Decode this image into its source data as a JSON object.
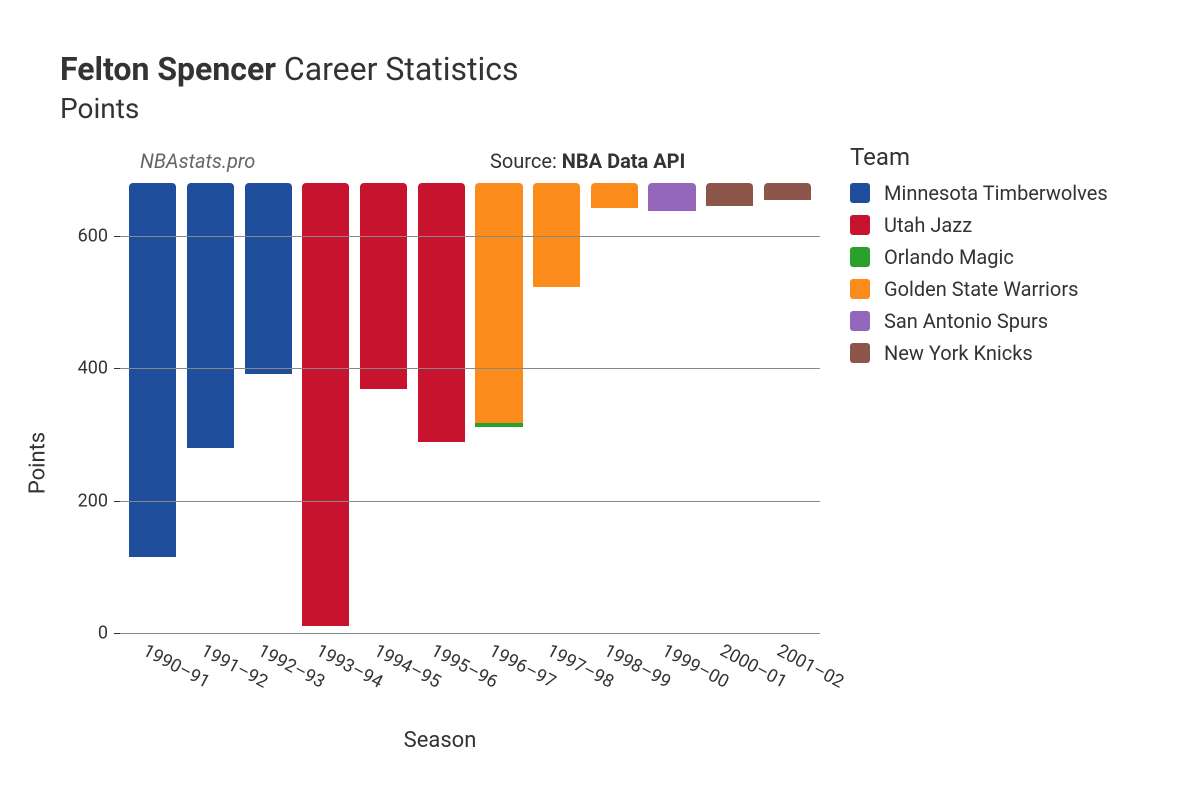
{
  "title": {
    "bold": "Felton Spencer",
    "normal": " Career Statistics"
  },
  "subtitle": "Points",
  "watermark": "NBAstats.pro",
  "source_prefix": "Source: ",
  "source_name": "NBA Data API",
  "chart": {
    "type": "bar",
    "x_label": "Season",
    "y_label": "Points",
    "ylim": [
      0,
      680
    ],
    "ytick_step": 200,
    "yticks": [
      0,
      200,
      400,
      600
    ],
    "grid_color": "#888888",
    "background_color": "#ffffff",
    "label_fontsize": 22,
    "tick_fontsize": 18,
    "bar_width": 0.82,
    "bar_border_radius": 4,
    "x_tick_rotation_deg": 28,
    "seasons": [
      {
        "label": "1990–91",
        "segments": [
          {
            "team": "Minnesota Timberwolves",
            "value": 565
          }
        ]
      },
      {
        "label": "1991–92",
        "segments": [
          {
            "team": "Minnesota Timberwolves",
            "value": 400
          }
        ]
      },
      {
        "label": "1992–93",
        "segments": [
          {
            "team": "Minnesota Timberwolves",
            "value": 288
          }
        ]
      },
      {
        "label": "1993–94",
        "segments": [
          {
            "team": "Utah Jazz",
            "value": 670
          }
        ]
      },
      {
        "label": "1994–95",
        "segments": [
          {
            "team": "Utah Jazz",
            "value": 312
          }
        ]
      },
      {
        "label": "1995–96",
        "segments": [
          {
            "team": "Utah Jazz",
            "value": 392
          }
        ]
      },
      {
        "label": "1996–97",
        "segments": [
          {
            "team": "Orlando Magic",
            "value": 6
          },
          {
            "team": "Golden State Warriors",
            "value": 362
          }
        ]
      },
      {
        "label": "1997–98",
        "segments": [
          {
            "team": "Golden State Warriors",
            "value": 157
          }
        ]
      },
      {
        "label": "1998–99",
        "segments": [
          {
            "team": "Golden State Warriors",
            "value": 38
          }
        ]
      },
      {
        "label": "1999–00",
        "segments": [
          {
            "team": "San Antonio Spurs",
            "value": 43
          }
        ]
      },
      {
        "label": "2000–01",
        "segments": [
          {
            "team": "New York Knicks",
            "value": 34
          }
        ]
      },
      {
        "label": "2001–02",
        "segments": [
          {
            "team": "New York Knicks",
            "value": 26
          }
        ]
      }
    ]
  },
  "legend": {
    "title": "Team",
    "items": [
      {
        "label": "Minnesota Timberwolves",
        "color": "#1f4e9c"
      },
      {
        "label": "Utah Jazz",
        "color": "#c8132e"
      },
      {
        "label": "Orlando Magic",
        "color": "#2ca02c"
      },
      {
        "label": "Golden State Warriors",
        "color": "#fb8b1a"
      },
      {
        "label": "San Antonio Spurs",
        "color": "#9467bd"
      },
      {
        "label": "New York Knicks",
        "color": "#8c564b"
      }
    ]
  }
}
